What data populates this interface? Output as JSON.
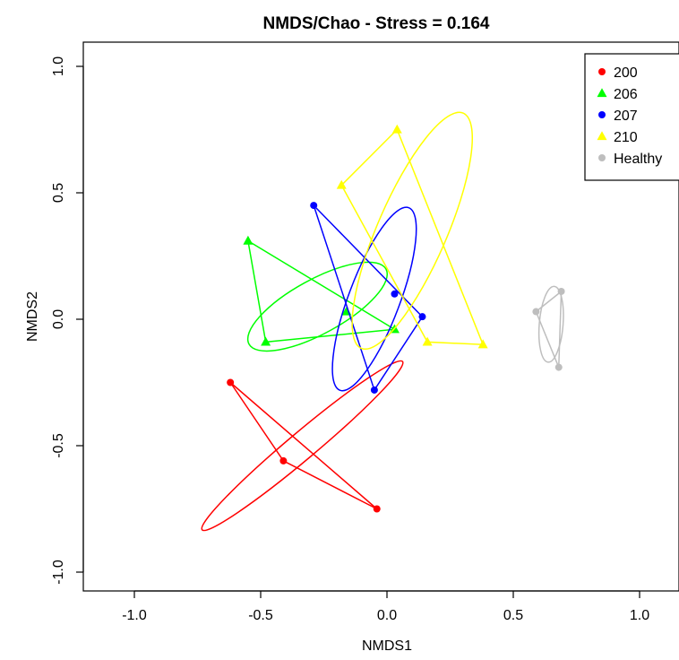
{
  "chart_data": {
    "type": "scatter",
    "title": "NMDS/Chao - Stress = 0.164",
    "xlabel": "NMDS1",
    "ylabel": "NMDS2",
    "xlim": [
      -1.2,
      1.2
    ],
    "ylim": [
      -1.07,
      1.07
    ],
    "xticks": [
      -1.0,
      -0.5,
      0.0,
      0.5,
      1.0
    ],
    "yticks": [
      -1.0,
      -0.5,
      0.0,
      0.5,
      1.0
    ],
    "xtick_labels": [
      "-1.0",
      "-0.5",
      "0.0",
      "0.5",
      "1.0"
    ],
    "ytick_labels": [
      "-1.0",
      "-0.5",
      "0.0",
      "0.5",
      "1.0"
    ],
    "grid": false,
    "legend_position": "top-right",
    "series": [
      {
        "name": "200",
        "color": "#ff0000",
        "marker": "circle",
        "points": [
          [
            -0.62,
            -0.25
          ],
          [
            -0.41,
            -0.56
          ],
          [
            -0.04,
            -0.75
          ]
        ],
        "hull": [
          [
            -0.62,
            -0.25
          ],
          [
            -0.41,
            -0.56
          ],
          [
            -0.04,
            -0.75
          ]
        ],
        "ellipse": {
          "cx": -0.335,
          "cy": -0.5,
          "rx": 0.5178,
          "ry": 0.0538,
          "angle_deg": -40.0
        }
      },
      {
        "name": "206",
        "color": "#00ff00",
        "marker": "triangle",
        "points": [
          [
            -0.55,
            0.31
          ],
          [
            -0.48,
            -0.09
          ],
          [
            -0.16,
            0.03
          ],
          [
            0.03,
            -0.04
          ]
        ],
        "hull": [
          [
            -0.55,
            0.31
          ],
          [
            -0.48,
            -0.09
          ],
          [
            0.03,
            -0.04
          ]
        ],
        "ellipse": {
          "cx": -0.275,
          "cy": 0.05,
          "rx": 0.3091,
          "ry": 0.1071,
          "angle_deg": -28.7
        }
      },
      {
        "name": "207",
        "color": "#0000ff",
        "marker": "circle",
        "points": [
          [
            -0.29,
            0.45
          ],
          [
            0.03,
            0.1
          ],
          [
            0.14,
            0.01
          ],
          [
            -0.05,
            -0.28
          ]
        ],
        "hull": [
          [
            -0.29,
            0.45
          ],
          [
            0.14,
            0.01
          ],
          [
            -0.05,
            -0.28
          ]
        ],
        "ellipse": {
          "cx": -0.05,
          "cy": 0.08,
          "rx": 0.3857,
          "ry": 0.1013,
          "angle_deg": -69.3
        }
      },
      {
        "name": "210",
        "color": "#ffff00",
        "marker": "triangle",
        "points": [
          [
            0.04,
            0.75
          ],
          [
            -0.18,
            0.53
          ],
          [
            0.16,
            -0.09
          ],
          [
            0.38,
            -0.1
          ]
        ],
        "hull": [
          [
            0.04,
            0.75
          ],
          [
            -0.18,
            0.53
          ],
          [
            0.16,
            -0.09
          ],
          [
            0.38,
            -0.1
          ]
        ],
        "ellipse": {
          "cx": 0.1,
          "cy": 0.35,
          "rx": 0.5069,
          "ry": 0.1366,
          "angle_deg": -66.5
        }
      },
      {
        "name": "Healthy",
        "color": "#bebebe",
        "marker": "circle",
        "points": [
          [
            0.69,
            0.11
          ],
          [
            0.59,
            0.03
          ],
          [
            0.68,
            -0.19
          ]
        ],
        "hull": [
          [
            0.69,
            0.11
          ],
          [
            0.59,
            0.03
          ],
          [
            0.68,
            -0.19
          ]
        ],
        "ellipse": {
          "cx": 0.65,
          "cy": -0.02,
          "rx": 0.1503,
          "ry": 0.0471,
          "angle_deg": -85.4
        }
      }
    ]
  }
}
